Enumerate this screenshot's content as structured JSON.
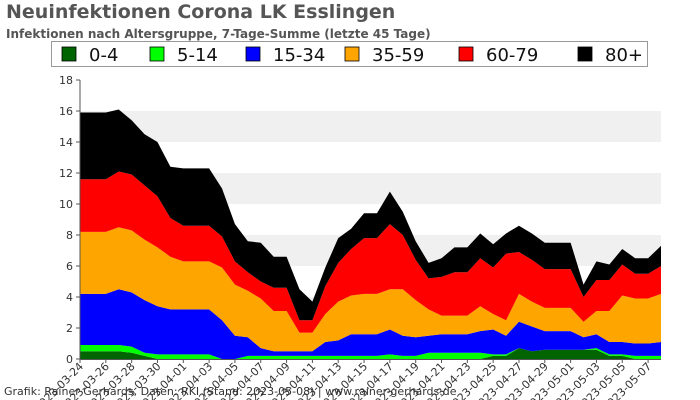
{
  "header": {
    "title": "Neuinfektionen Corona LK Esslingen",
    "subtitle": "Infektionen nach Altersgruppe, 7-Tage-Summe (letzte 45 Tage)"
  },
  "footer": {
    "credit": "Grafik: Rainer Gerhards, Daten: RKI (Stand: 2023-05-08) | www.rainer-gerhards.de"
  },
  "chart_data": {
    "type": "area",
    "stacked": true,
    "x": [
      "2023-03-24",
      "2023-03-25",
      "2023-03-26",
      "2023-03-27",
      "2023-03-28",
      "2023-03-29",
      "2023-03-30",
      "2023-03-31",
      "2023-04-01",
      "2023-04-02",
      "2023-04-03",
      "2023-04-04",
      "2023-04-05",
      "2023-04-06",
      "2023-04-07",
      "2023-04-08",
      "2023-04-09",
      "2023-04-10",
      "2023-04-11",
      "2023-04-12",
      "2023-04-13",
      "2023-04-14",
      "2023-04-15",
      "2023-04-16",
      "2023-04-17",
      "2023-04-18",
      "2023-04-19",
      "2023-04-20",
      "2023-04-21",
      "2023-04-22",
      "2023-04-23",
      "2023-04-24",
      "2023-04-25",
      "2023-04-26",
      "2023-04-27",
      "2023-04-28",
      "2023-04-29",
      "2023-04-30",
      "2023-05-01",
      "2023-05-02",
      "2023-05-03",
      "2023-05-04",
      "2023-05-05",
      "2023-05-06",
      "2023-05-07",
      "2023-05-08"
    ],
    "x_tick_labels": [
      "2023-03-24",
      "2023-03-26",
      "2023-03-28",
      "2023-03-30",
      "2023-04-01",
      "2023-04-03",
      "2023-04-05",
      "2023-04-07",
      "2023-04-09",
      "2023-04-11",
      "2023-04-13",
      "2023-04-15",
      "2023-04-17",
      "2023-04-19",
      "2023-04-21",
      "2023-04-23",
      "2023-04-25",
      "2023-04-27",
      "2023-04-29",
      "2023-05-01",
      "2023-05-03",
      "2023-05-05",
      "2023-05-07"
    ],
    "ylim": [
      0,
      18
    ],
    "yticks": [
      0,
      2,
      4,
      6,
      8,
      10,
      12,
      14,
      16,
      18
    ],
    "grid": "horizontal bands",
    "legend_position": "top",
    "series": [
      {
        "name": "0-4",
        "color": "#006400",
        "values": [
          0.5,
          0.5,
          0.5,
          0.5,
          0.4,
          0.2,
          0.0,
          0.0,
          0.0,
          0.0,
          0.0,
          0.0,
          0.0,
          0.0,
          0.0,
          0.0,
          0.0,
          0.0,
          0.0,
          0.0,
          0.0,
          0.0,
          0.0,
          0.0,
          0.0,
          0.0,
          0.0,
          0.0,
          0.0,
          0.0,
          0.0,
          0.0,
          0.2,
          0.2,
          0.7,
          0.5,
          0.6,
          0.6,
          0.6,
          0.6,
          0.6,
          0.2,
          0.2,
          0.0,
          0.0,
          0.0
        ]
      },
      {
        "name": "5-14",
        "color": "#00ff00",
        "values": [
          0.4,
          0.4,
          0.4,
          0.4,
          0.4,
          0.2,
          0.3,
          0.3,
          0.3,
          0.3,
          0.3,
          0.0,
          0.0,
          0.2,
          0.2,
          0.2,
          0.2,
          0.2,
          0.2,
          0.2,
          0.2,
          0.2,
          0.2,
          0.2,
          0.3,
          0.2,
          0.2,
          0.4,
          0.4,
          0.4,
          0.4,
          0.4,
          0.1,
          0.1,
          0.0,
          0.0,
          0.0,
          0.0,
          0.0,
          0.0,
          0.1,
          0.1,
          0.1,
          0.2,
          0.2,
          0.2
        ]
      },
      {
        "name": "15-34",
        "color": "#0000ff",
        "values": [
          3.3,
          3.3,
          3.3,
          3.6,
          3.5,
          3.4,
          3.1,
          2.9,
          2.9,
          2.9,
          2.9,
          2.5,
          1.5,
          1.2,
          0.5,
          0.3,
          0.3,
          0.3,
          0.3,
          0.9,
          1.0,
          1.4,
          1.4,
          1.4,
          1.6,
          1.3,
          1.2,
          1.1,
          1.2,
          1.2,
          1.2,
          1.4,
          1.6,
          1.2,
          1.7,
          1.6,
          1.2,
          1.2,
          1.2,
          0.8,
          0.9,
          0.8,
          0.8,
          0.8,
          0.8,
          0.9
        ]
      },
      {
        "name": "35-59",
        "color": "#ffa500",
        "values": [
          4.0,
          4.0,
          4.0,
          4.0,
          4.0,
          3.9,
          3.8,
          3.4,
          3.1,
          3.1,
          3.1,
          3.4,
          3.3,
          3.0,
          3.2,
          2.6,
          2.6,
          1.2,
          1.2,
          1.8,
          2.5,
          2.5,
          2.6,
          2.6,
          2.6,
          3.0,
          2.4,
          1.7,
          1.2,
          1.2,
          1.2,
          1.6,
          1.0,
          1.0,
          1.8,
          1.6,
          1.5,
          1.5,
          1.5,
          1.0,
          1.5,
          2.0,
          3.0,
          2.9,
          2.9,
          3.1
        ]
      },
      {
        "name": "60-79",
        "color": "#ff0000",
        "values": [
          3.4,
          3.4,
          3.4,
          3.6,
          3.6,
          3.5,
          3.3,
          2.5,
          2.3,
          2.3,
          2.3,
          2.0,
          1.5,
          1.2,
          1.1,
          1.5,
          1.5,
          0.8,
          0.8,
          1.8,
          2.5,
          3.0,
          3.6,
          3.6,
          4.2,
          3.5,
          2.6,
          2.0,
          2.5,
          2.8,
          2.8,
          3.1,
          3.0,
          4.3,
          2.7,
          2.7,
          2.5,
          2.5,
          2.5,
          1.6,
          2.0,
          2.0,
          2.0,
          1.6,
          1.6,
          1.8
        ]
      },
      {
        "name": "80+",
        "color": "#000000",
        "values": [
          4.3,
          4.3,
          4.3,
          4.0,
          3.5,
          3.3,
          3.5,
          3.3,
          3.7,
          3.7,
          3.7,
          3.1,
          2.4,
          2.0,
          2.5,
          2.0,
          2.0,
          2.0,
          1.2,
          1.2,
          1.6,
          1.3,
          1.6,
          1.6,
          2.1,
          1.5,
          1.2,
          1.0,
          1.2,
          1.6,
          1.6,
          1.6,
          1.5,
          1.3,
          1.7,
          1.7,
          1.7,
          1.7,
          1.7,
          0.8,
          1.2,
          1.0,
          1.0,
          1.0,
          1.0,
          1.3
        ]
      }
    ]
  }
}
